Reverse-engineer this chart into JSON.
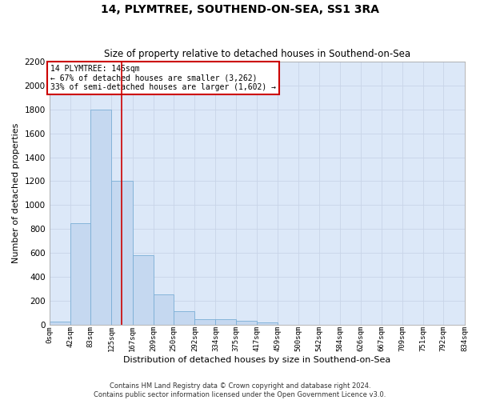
{
  "title": "14, PLYMTREE, SOUTHEND-ON-SEA, SS1 3RA",
  "subtitle": "Size of property relative to detached houses in Southend-on-Sea",
  "xlabel": "Distribution of detached houses by size in Southend-on-Sea",
  "ylabel": "Number of detached properties",
  "bar_values": [
    25,
    850,
    1800,
    1200,
    580,
    255,
    115,
    45,
    45,
    30,
    20,
    0,
    0,
    0,
    0,
    0,
    0,
    0,
    0,
    0
  ],
  "bin_edges": [
    0,
    42,
    83,
    125,
    167,
    209,
    250,
    292,
    334,
    375,
    417,
    459,
    500,
    542,
    584,
    626,
    667,
    709,
    751,
    792,
    834
  ],
  "tick_labels": [
    "0sqm",
    "42sqm",
    "83sqm",
    "125sqm",
    "167sqm",
    "209sqm",
    "250sqm",
    "292sqm",
    "334sqm",
    "375sqm",
    "417sqm",
    "459sqm",
    "500sqm",
    "542sqm",
    "584sqm",
    "626sqm",
    "667sqm",
    "709sqm",
    "751sqm",
    "792sqm",
    "834sqm"
  ],
  "bar_color": "#c5d8f0",
  "bar_edge_color": "#7aaed6",
  "red_line_x": 145,
  "annotation_text": "14 PLYMTREE: 145sqm\n← 67% of detached houses are smaller (3,262)\n33% of semi-detached houses are larger (1,602) →",
  "annotation_box_color": "#ffffff",
  "annotation_box_edge": "#cc0000",
  "ylim": [
    0,
    2200
  ],
  "yticks": [
    0,
    200,
    400,
    600,
    800,
    1000,
    1200,
    1400,
    1600,
    1800,
    2000,
    2200
  ],
  "grid_color": "#c8d4e8",
  "background_color": "#dce8f8",
  "fig_background": "#ffffff",
  "footer_line1": "Contains HM Land Registry data © Crown copyright and database right 2024.",
  "footer_line2": "Contains public sector information licensed under the Open Government Licence v3.0."
}
